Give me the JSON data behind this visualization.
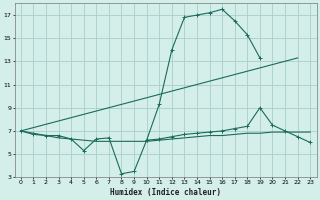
{
  "xlabel": "Humidex (Indice chaleur)",
  "bg_color": "#d4eeea",
  "grid_color": "#aacece",
  "line_color": "#1a6b5a",
  "xlim": [
    -0.5,
    23.5
  ],
  "ylim": [
    3,
    18
  ],
  "xticks": [
    0,
    1,
    2,
    3,
    4,
    5,
    6,
    7,
    8,
    9,
    10,
    11,
    12,
    13,
    14,
    15,
    16,
    17,
    18,
    19,
    20,
    21,
    22,
    23
  ],
  "yticks": [
    3,
    5,
    7,
    9,
    11,
    13,
    15,
    17
  ],
  "s1x": [
    0,
    1,
    2,
    3,
    4,
    5,
    6,
    7,
    8,
    9,
    10,
    11,
    12,
    13,
    14,
    15,
    16,
    17,
    18,
    19
  ],
  "s1y": [
    7.0,
    6.7,
    6.6,
    6.6,
    6.3,
    5.3,
    6.3,
    6.4,
    3.3,
    3.5,
    6.2,
    9.3,
    14.0,
    16.8,
    17.0,
    17.2,
    17.5,
    16.5,
    15.3,
    13.3
  ],
  "s2x": [
    0,
    22
  ],
  "s2y": [
    7.0,
    13.3
  ],
  "s3x": [
    0,
    1,
    2,
    3,
    4,
    5,
    6,
    7,
    8,
    9,
    10,
    11,
    12,
    13,
    14,
    15,
    16,
    17,
    18,
    19,
    20,
    21,
    22,
    23
  ],
  "s3y": [
    7.0,
    6.8,
    6.6,
    6.4,
    6.3,
    6.2,
    6.1,
    6.1,
    6.1,
    6.1,
    6.1,
    6.2,
    6.3,
    6.4,
    6.5,
    6.6,
    6.6,
    6.7,
    6.8,
    6.8,
    6.9,
    6.9,
    6.9,
    6.9
  ],
  "s4x": [
    10,
    11,
    12,
    13,
    14,
    15,
    16,
    17,
    18,
    19,
    20,
    21,
    22,
    23
  ],
  "s4y": [
    6.2,
    6.3,
    6.5,
    6.7,
    6.8,
    6.9,
    7.0,
    7.2,
    7.4,
    9.0,
    7.5,
    7.0,
    6.5,
    6.0
  ]
}
